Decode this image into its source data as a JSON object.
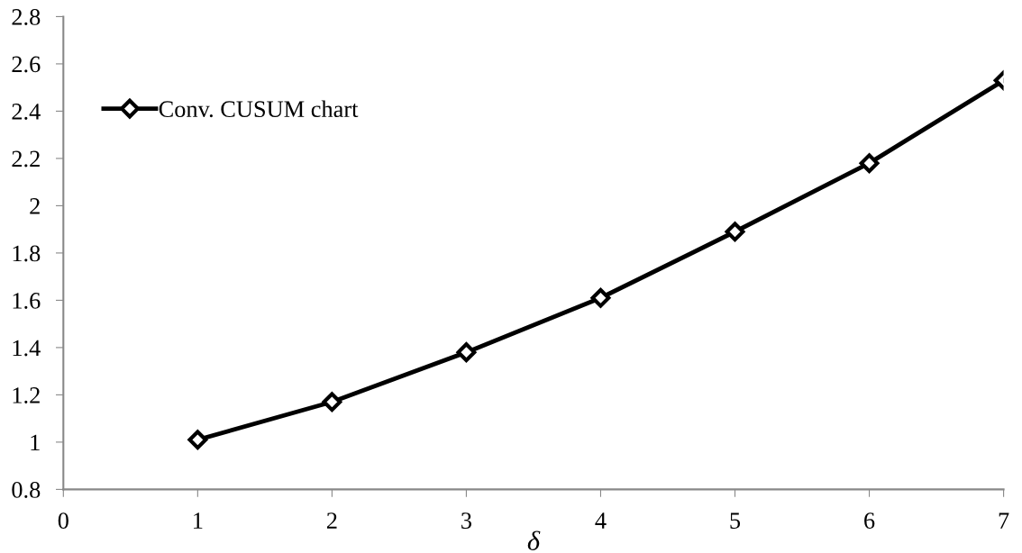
{
  "chart_data": {
    "type": "line",
    "xlabel": "δ",
    "x": [
      1,
      2,
      3,
      4,
      5,
      6,
      7
    ],
    "series": [
      {
        "name": "Conv. CUSUM chart",
        "color": "#000000",
        "values": [
          1.01,
          1.17,
          1.38,
          1.61,
          1.89,
          2.18,
          2.53
        ]
      }
    ],
    "xlim": [
      0,
      7
    ],
    "xticks": [
      0,
      1,
      2,
      3,
      4,
      5,
      6,
      7
    ],
    "ylim": [
      0.8,
      2.8
    ],
    "yticks": [
      {
        "value": 0.8,
        "label": "0.8"
      },
      {
        "value": 1.0,
        "label": "1"
      },
      {
        "value": 1.2,
        "label": "1.2"
      },
      {
        "value": 1.4,
        "label": "1.4"
      },
      {
        "value": 1.6,
        "label": "1.6"
      },
      {
        "value": 1.8,
        "label": "1.8"
      },
      {
        "value": 2.0,
        "label": "2"
      },
      {
        "value": 2.2,
        "label": "2.2"
      },
      {
        "value": 2.4,
        "label": "2.4"
      },
      {
        "value": 2.6,
        "label": "2.6"
      },
      {
        "value": 2.8,
        "label": "2.8"
      }
    ],
    "grid": false,
    "legend": "top left",
    "marker": "diamond",
    "line_style": "solid"
  }
}
